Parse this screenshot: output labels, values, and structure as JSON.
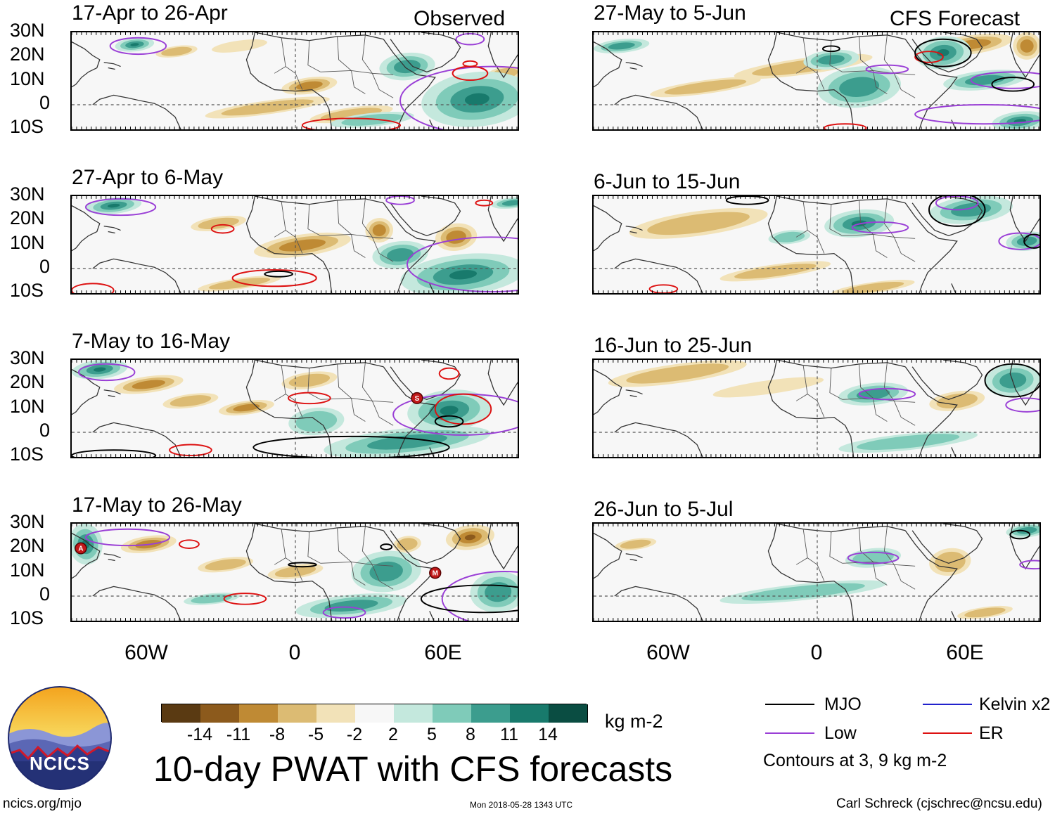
{
  "panels": {
    "p1": {
      "title": "17-Apr to 26-Apr",
      "tag": "Observed"
    },
    "p2": {
      "title": "27-Apr to 6-May"
    },
    "p3": {
      "title": "7-May to 16-May"
    },
    "p4": {
      "title": "17-May to 26-May"
    },
    "p5": {
      "title": "27-May to 5-Jun",
      "tag": "CFS Forecast"
    },
    "p6": {
      "title": "6-Jun to 15-Jun"
    },
    "p7": {
      "title": "16-Jun to 25-Jun"
    },
    "p8": {
      "title": "26-Jun to 5-Jul"
    }
  },
  "axes": {
    "lat_labels": [
      "30N",
      "20N",
      "10N",
      "0",
      "10S"
    ],
    "lon_labels": [
      "60W",
      "0",
      "60E"
    ]
  },
  "storm_markers": {
    "p3": [
      "S"
    ],
    "p4": [
      "A",
      "M"
    ]
  },
  "colorbar": {
    "ticks": [
      "-14",
      "-11",
      "-8",
      "-5",
      "-2",
      "2",
      "5",
      "8",
      "11",
      "14"
    ],
    "colors": [
      "#5a3a12",
      "#8c5a1c",
      "#bf8a34",
      "#dcbb73",
      "#f2e2b8",
      "#f7f7f7",
      "#c4e8dd",
      "#7fcbb9",
      "#3c9d8e",
      "#187a6c",
      "#0a4d42"
    ],
    "units": "kg m-2"
  },
  "title": "10-day PWAT with CFS forecasts",
  "logo": {
    "text": "NCICS"
  },
  "legend": {
    "items": [
      {
        "label": "MJO",
        "color": "#000000"
      },
      {
        "label": "Low",
        "color": "#9a3fd6"
      },
      {
        "label": "Kelvin x2",
        "color": "#2222cc"
      },
      {
        "label": "ER",
        "color": "#dd1111"
      }
    ],
    "note": "Contours at 3, 9 kg m-2"
  },
  "footer": {
    "left": "ncics.org/mjo",
    "center": "Mon 2018-05-28 1343 UTC",
    "right": "Carl Schreck (cjschrec@ncsu.edu)"
  }
}
